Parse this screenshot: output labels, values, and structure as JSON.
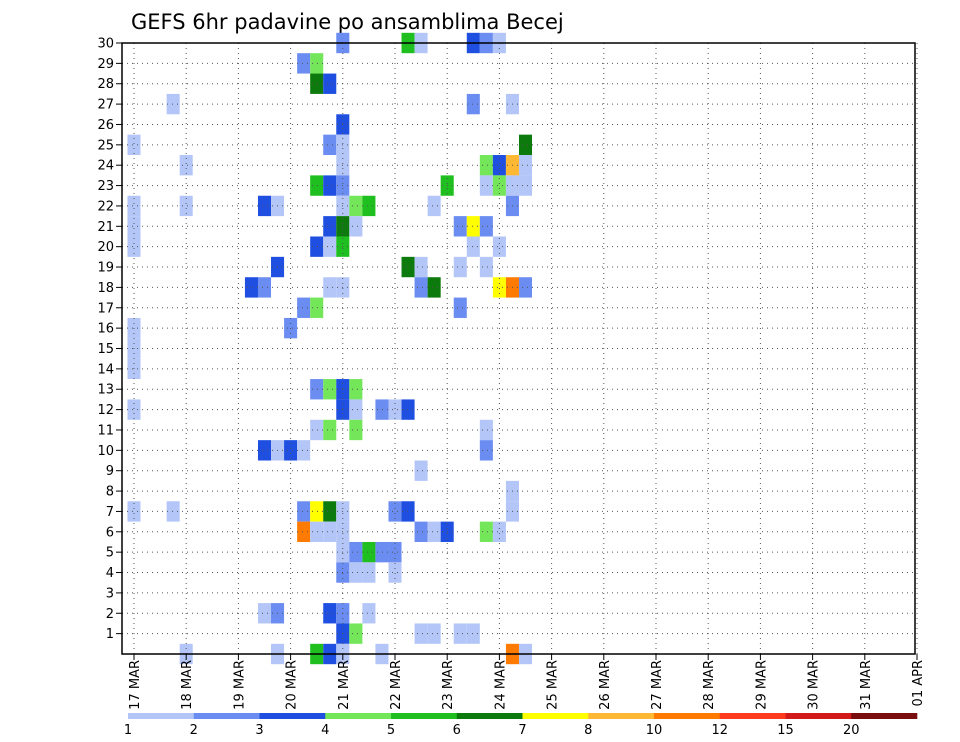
{
  "chart_data": {
    "type": "heatmap",
    "title": "GEFS 6hr padavine po ansamblima Becej",
    "xlabel": "",
    "ylabel": "",
    "x_ticks": [
      "17 MAR",
      "18 MAR",
      "19 MAR",
      "20 MAR",
      "21 MAR",
      "22 MAR",
      "23 MAR",
      "24 MAR",
      "25 MAR",
      "26 MAR",
      "27 MAR",
      "28 MAR",
      "29 MAR",
      "30 MAR",
      "31 MAR",
      "01 APR"
    ],
    "y_ticks": [
      "1",
      "2",
      "3",
      "4",
      "5",
      "6",
      "7",
      "8",
      "9",
      "10",
      "11",
      "12",
      "13",
      "14",
      "15",
      "16",
      "17",
      "18",
      "19",
      "20",
      "21",
      "22",
      "23",
      "24",
      "25",
      "26",
      "27",
      "28",
      "29",
      "30"
    ],
    "y_range": [
      0,
      30
    ],
    "time_step_hours": 6,
    "grid": true,
    "legend_placement": "bottom",
    "colorbar": {
      "labels": [
        "1",
        "2",
        "3",
        "4",
        "5",
        "6",
        "7",
        "8",
        "10",
        "12",
        "15",
        "20"
      ],
      "colors": [
        "#b3c6f7",
        "#6b8df1",
        "#1f4fe0",
        "#73e65a",
        "#1fbf1f",
        "#0d7a0d",
        "#ffff00",
        "#ffb833",
        "#ff7a00",
        "#ff3b1f",
        "#d31a1a",
        "#7a0d0d"
      ]
    },
    "cells": [
      {
        "member": 30,
        "step": 16,
        "level": 2
      },
      {
        "member": 30,
        "step": 21,
        "level": 5
      },
      {
        "member": 30,
        "step": 22,
        "level": 1
      },
      {
        "member": 30,
        "step": 26,
        "level": 3
      },
      {
        "member": 30,
        "step": 27,
        "level": 2
      },
      {
        "member": 30,
        "step": 28,
        "level": 1
      },
      {
        "member": 29,
        "step": 13,
        "level": 2
      },
      {
        "member": 29,
        "step": 14,
        "level": 4
      },
      {
        "member": 28,
        "step": 14,
        "level": 6
      },
      {
        "member": 28,
        "step": 15,
        "level": 3
      },
      {
        "member": 27,
        "step": 3,
        "level": 1
      },
      {
        "member": 27,
        "step": 26,
        "level": 2
      },
      {
        "member": 27,
        "step": 29,
        "level": 1
      },
      {
        "member": 26,
        "step": 16,
        "level": 3
      },
      {
        "member": 25,
        "step": 0,
        "level": 1
      },
      {
        "member": 25,
        "step": 15,
        "level": 2
      },
      {
        "member": 25,
        "step": 16,
        "level": 1
      },
      {
        "member": 25,
        "step": 30,
        "level": 6
      },
      {
        "member": 24,
        "step": 4,
        "level": 1
      },
      {
        "member": 24,
        "step": 16,
        "level": 1
      },
      {
        "member": 24,
        "step": 27,
        "level": 4
      },
      {
        "member": 24,
        "step": 28,
        "level": 3
      },
      {
        "member": 24,
        "step": 29,
        "level": 8
      },
      {
        "member": 24,
        "step": 30,
        "level": 1
      },
      {
        "member": 23,
        "step": 14,
        "level": 5
      },
      {
        "member": 23,
        "step": 15,
        "level": 3
      },
      {
        "member": 23,
        "step": 16,
        "level": 2
      },
      {
        "member": 23,
        "step": 24,
        "level": 5
      },
      {
        "member": 23,
        "step": 27,
        "level": 1
      },
      {
        "member": 23,
        "step": 28,
        "level": 4
      },
      {
        "member": 23,
        "step": 29,
        "level": 1
      },
      {
        "member": 23,
        "step": 30,
        "level": 1
      },
      {
        "member": 22,
        "step": 0,
        "level": 1
      },
      {
        "member": 22,
        "step": 4,
        "level": 1
      },
      {
        "member": 22,
        "step": 10,
        "level": 3
      },
      {
        "member": 22,
        "step": 11,
        "level": 1
      },
      {
        "member": 22,
        "step": 16,
        "level": 1
      },
      {
        "member": 22,
        "step": 17,
        "level": 4
      },
      {
        "member": 22,
        "step": 18,
        "level": 5
      },
      {
        "member": 22,
        "step": 23,
        "level": 1
      },
      {
        "member": 22,
        "step": 29,
        "level": 2
      },
      {
        "member": 21,
        "step": 0,
        "level": 1
      },
      {
        "member": 21,
        "step": 15,
        "level": 3
      },
      {
        "member": 21,
        "step": 16,
        "level": 6
      },
      {
        "member": 21,
        "step": 17,
        "level": 1
      },
      {
        "member": 21,
        "step": 25,
        "level": 2
      },
      {
        "member": 21,
        "step": 26,
        "level": 7
      },
      {
        "member": 21,
        "step": 27,
        "level": 2
      },
      {
        "member": 20,
        "step": 0,
        "level": 1
      },
      {
        "member": 20,
        "step": 14,
        "level": 3
      },
      {
        "member": 20,
        "step": 15,
        "level": 1
      },
      {
        "member": 20,
        "step": 16,
        "level": 5
      },
      {
        "member": 20,
        "step": 26,
        "level": 1
      },
      {
        "member": 20,
        "step": 28,
        "level": 1
      },
      {
        "member": 19,
        "step": 11,
        "level": 3
      },
      {
        "member": 19,
        "step": 21,
        "level": 6
      },
      {
        "member": 19,
        "step": 22,
        "level": 1
      },
      {
        "member": 19,
        "step": 25,
        "level": 1
      },
      {
        "member": 19,
        "step": 27,
        "level": 1
      },
      {
        "member": 18,
        "step": 9,
        "level": 3
      },
      {
        "member": 18,
        "step": 10,
        "level": 2
      },
      {
        "member": 18,
        "step": 15,
        "level": 1
      },
      {
        "member": 18,
        "step": 16,
        "level": 1
      },
      {
        "member": 18,
        "step": 22,
        "level": 2
      },
      {
        "member": 18,
        "step": 23,
        "level": 6
      },
      {
        "member": 18,
        "step": 28,
        "level": 7
      },
      {
        "member": 18,
        "step": 29,
        "level": 9
      },
      {
        "member": 18,
        "step": 30,
        "level": 2
      },
      {
        "member": 17,
        "step": 13,
        "level": 2
      },
      {
        "member": 17,
        "step": 14,
        "level": 4
      },
      {
        "member": 17,
        "step": 25,
        "level": 2
      },
      {
        "member": 16,
        "step": 0,
        "level": 1
      },
      {
        "member": 16,
        "step": 12,
        "level": 2
      },
      {
        "member": 15,
        "step": 0,
        "level": 1
      },
      {
        "member": 14,
        "step": 0,
        "level": 1
      },
      {
        "member": 13,
        "step": 14,
        "level": 2
      },
      {
        "member": 13,
        "step": 15,
        "level": 4
      },
      {
        "member": 13,
        "step": 16,
        "level": 3
      },
      {
        "member": 13,
        "step": 17,
        "level": 4
      },
      {
        "member": 12,
        "step": 0,
        "level": 1
      },
      {
        "member": 12,
        "step": 16,
        "level": 3
      },
      {
        "member": 12,
        "step": 17,
        "level": 1
      },
      {
        "member": 12,
        "step": 19,
        "level": 2
      },
      {
        "member": 12,
        "step": 20,
        "level": 1
      },
      {
        "member": 12,
        "step": 21,
        "level": 3
      },
      {
        "member": 11,
        "step": 14,
        "level": 1
      },
      {
        "member": 11,
        "step": 15,
        "level": 4
      },
      {
        "member": 11,
        "step": 17,
        "level": 4
      },
      {
        "member": 11,
        "step": 27,
        "level": 1
      },
      {
        "member": 10,
        "step": 10,
        "level": 3
      },
      {
        "member": 10,
        "step": 11,
        "level": 1
      },
      {
        "member": 10,
        "step": 12,
        "level": 3
      },
      {
        "member": 10,
        "step": 13,
        "level": 1
      },
      {
        "member": 10,
        "step": 27,
        "level": 2
      },
      {
        "member": 9,
        "step": 22,
        "level": 1
      },
      {
        "member": 8,
        "step": 29,
        "level": 1
      },
      {
        "member": 7,
        "step": 0,
        "level": 1
      },
      {
        "member": 7,
        "step": 3,
        "level": 1
      },
      {
        "member": 7,
        "step": 13,
        "level": 2
      },
      {
        "member": 7,
        "step": 14,
        "level": 7
      },
      {
        "member": 7,
        "step": 15,
        "level": 6
      },
      {
        "member": 7,
        "step": 16,
        "level": 1
      },
      {
        "member": 7,
        "step": 20,
        "level": 2
      },
      {
        "member": 7,
        "step": 21,
        "level": 3
      },
      {
        "member": 7,
        "step": 29,
        "level": 1
      },
      {
        "member": 6,
        "step": 13,
        "level": 9
      },
      {
        "member": 6,
        "step": 14,
        "level": 1
      },
      {
        "member": 6,
        "step": 15,
        "level": 1
      },
      {
        "member": 6,
        "step": 16,
        "level": 1
      },
      {
        "member": 6,
        "step": 22,
        "level": 2
      },
      {
        "member": 6,
        "step": 23,
        "level": 1
      },
      {
        "member": 6,
        "step": 24,
        "level": 3
      },
      {
        "member": 6,
        "step": 27,
        "level": 4
      },
      {
        "member": 6,
        "step": 28,
        "level": 1
      },
      {
        "member": 5,
        "step": 16,
        "level": 1
      },
      {
        "member": 5,
        "step": 17,
        "level": 2
      },
      {
        "member": 5,
        "step": 18,
        "level": 5
      },
      {
        "member": 5,
        "step": 19,
        "level": 2
      },
      {
        "member": 5,
        "step": 20,
        "level": 2
      },
      {
        "member": 4,
        "step": 16,
        "level": 2
      },
      {
        "member": 4,
        "step": 17,
        "level": 1
      },
      {
        "member": 4,
        "step": 18,
        "level": 1
      },
      {
        "member": 4,
        "step": 20,
        "level": 1
      },
      {
        "member": 2,
        "step": 10,
        "level": 1
      },
      {
        "member": 2,
        "step": 11,
        "level": 2
      },
      {
        "member": 2,
        "step": 15,
        "level": 3
      },
      {
        "member": 2,
        "step": 16,
        "level": 2
      },
      {
        "member": 2,
        "step": 18,
        "level": 1
      },
      {
        "member": 1,
        "step": 16,
        "level": 3
      },
      {
        "member": 1,
        "step": 17,
        "level": 4
      },
      {
        "member": 1,
        "step": 22,
        "level": 1
      },
      {
        "member": 1,
        "step": 23,
        "level": 1
      },
      {
        "member": 1,
        "step": 25,
        "level": 1
      },
      {
        "member": 1,
        "step": 26,
        "level": 1
      },
      {
        "member": 0,
        "step": 4,
        "level": 1
      },
      {
        "member": 0,
        "step": 11,
        "level": 1
      },
      {
        "member": 0,
        "step": 14,
        "level": 5
      },
      {
        "member": 0,
        "step": 15,
        "level": 3
      },
      {
        "member": 0,
        "step": 16,
        "level": 1
      },
      {
        "member": 0,
        "step": 19,
        "level": 1
      },
      {
        "member": 0,
        "step": 29,
        "level": 9
      },
      {
        "member": 0,
        "step": 30,
        "level": 1
      }
    ]
  }
}
